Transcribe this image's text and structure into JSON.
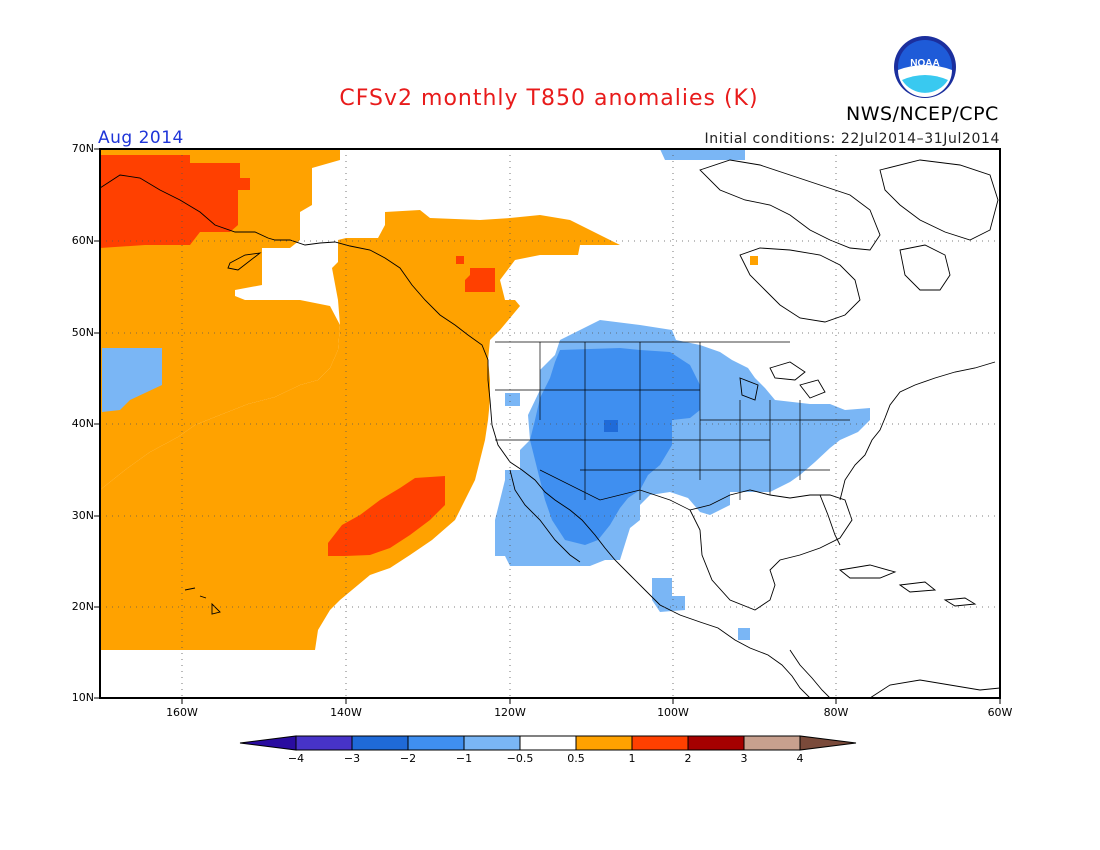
{
  "header": {
    "title": "CFSv2 monthly T850 anomalies (K)",
    "agency": "NWS/NCEP/CPC",
    "valid_month": "Aug 2014",
    "initial_conditions": "Initial conditions: 22Jul2014–31Jul2014",
    "logo_text": "NOAA"
  },
  "map": {
    "lat_labels": [
      "70N",
      "60N",
      "50N",
      "40N",
      "30N",
      "20N",
      "10N"
    ],
    "lon_labels": [
      "160W",
      "140W",
      "120W",
      "100W",
      "80W",
      "60W"
    ],
    "lat_range": [
      10,
      70
    ],
    "lon_range": [
      -170,
      -60
    ]
  },
  "colorbar": {
    "labels": [
      "−4",
      "−3",
      "−2",
      "−1",
      "−0.5",
      "0.5",
      "1",
      "2",
      "3",
      "4"
    ],
    "colors": {
      "lt_-4": "#2a0ca0",
      "-4_-3": "#4733c8",
      "-3_-2": "#1f6ad8",
      "-2_-1": "#3f8ff0",
      "-1_-0.5": "#7ab6f5",
      "-0.5_0.5": "#ffffff",
      "0.5_1": "#ffa200",
      "1_2": "#ff4000",
      "2_3": "#a50000",
      "3_4": "#c8a08e",
      "gt_4": "#7a4a3a"
    }
  }
}
